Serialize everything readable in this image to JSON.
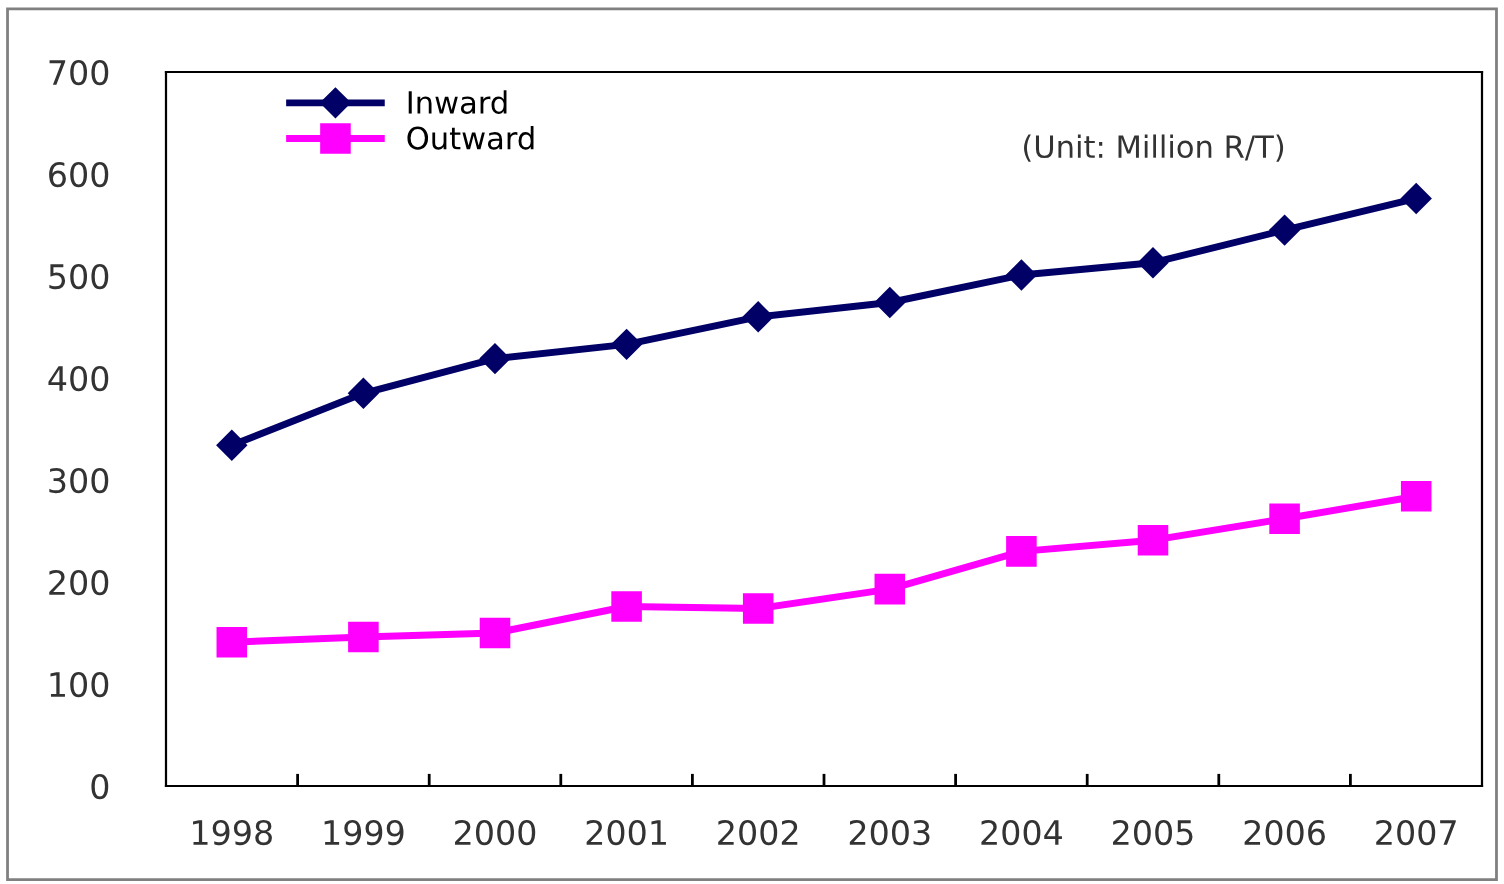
{
  "chart_data": {
    "type": "line",
    "categories": [
      "1998",
      "1999",
      "2000",
      "2001",
      "2002",
      "2003",
      "2004",
      "2005",
      "2006",
      "2007"
    ],
    "series": [
      {
        "name": "Inward",
        "color": "#000066",
        "marker": "diamond",
        "values": [
          334,
          385,
          419,
          433,
          460,
          474,
          501,
          513,
          545,
          576
        ]
      },
      {
        "name": "Outward",
        "color": "#ff00ff",
        "marker": "square",
        "values": [
          141,
          146,
          150,
          176,
          174,
          193,
          230,
          241,
          262,
          284
        ]
      }
    ],
    "ylim": [
      0,
      700
    ],
    "yticks": [
      0,
      100,
      200,
      300,
      400,
      500,
      600,
      700
    ],
    "annotations": [
      "(Unit: Million R/T)"
    ],
    "legend": "top left",
    "grid": false,
    "line_style": "solid"
  }
}
